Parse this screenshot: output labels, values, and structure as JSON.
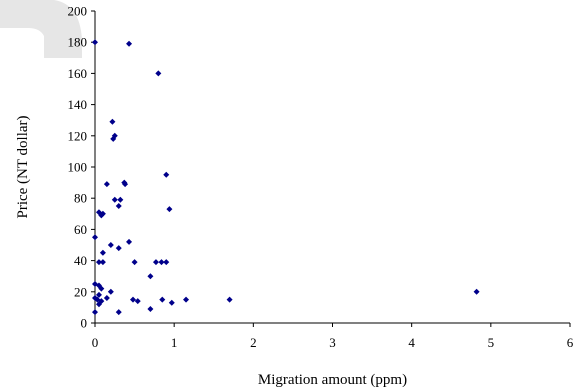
{
  "chart_data": {
    "type": "scatter",
    "title": "",
    "xlabel": "Migration amount (ppm)",
    "ylabel": "Price (NT dollar)",
    "xlim": [
      0,
      6
    ],
    "ylim": [
      0,
      200
    ],
    "xticks": [
      0,
      1,
      2,
      3,
      4,
      5,
      6
    ],
    "yticks": [
      0,
      20,
      40,
      60,
      80,
      100,
      120,
      140,
      160,
      180,
      200
    ],
    "grid": false,
    "legend": "none",
    "marker": "diamond",
    "color": "#00008B",
    "points": [
      [
        0.0,
        180
      ],
      [
        0.43,
        179
      ],
      [
        0.8,
        160
      ],
      [
        0.22,
        129
      ],
      [
        0.25,
        120
      ],
      [
        0.23,
        118
      ],
      [
        0.9,
        95
      ],
      [
        0.37,
        90
      ],
      [
        0.38,
        89
      ],
      [
        0.15,
        89
      ],
      [
        0.25,
        79
      ],
      [
        0.32,
        79
      ],
      [
        0.3,
        75
      ],
      [
        0.94,
        73
      ],
      [
        0.05,
        71
      ],
      [
        0.1,
        70
      ],
      [
        0.08,
        69
      ],
      [
        0.0,
        55
      ],
      [
        0.43,
        52
      ],
      [
        0.2,
        50
      ],
      [
        0.3,
        48
      ],
      [
        0.1,
        45
      ],
      [
        0.05,
        39
      ],
      [
        0.1,
        39
      ],
      [
        0.5,
        39
      ],
      [
        0.77,
        39
      ],
      [
        0.84,
        39
      ],
      [
        0.9,
        39
      ],
      [
        0.7,
        30
      ],
      [
        0.0,
        25
      ],
      [
        0.05,
        24
      ],
      [
        0.08,
        22
      ],
      [
        0.2,
        20
      ],
      [
        0.05,
        18
      ],
      [
        0.0,
        16
      ],
      [
        0.15,
        16
      ],
      [
        0.03,
        15
      ],
      [
        0.48,
        15
      ],
      [
        0.85,
        15
      ],
      [
        1.15,
        15
      ],
      [
        1.7,
        15
      ],
      [
        0.08,
        14
      ],
      [
        0.54,
        14
      ],
      [
        0.97,
        13
      ],
      [
        0.05,
        12
      ],
      [
        0.7,
        9
      ],
      [
        0.3,
        7
      ],
      [
        0.0,
        7
      ],
      [
        4.82,
        20
      ]
    ]
  }
}
